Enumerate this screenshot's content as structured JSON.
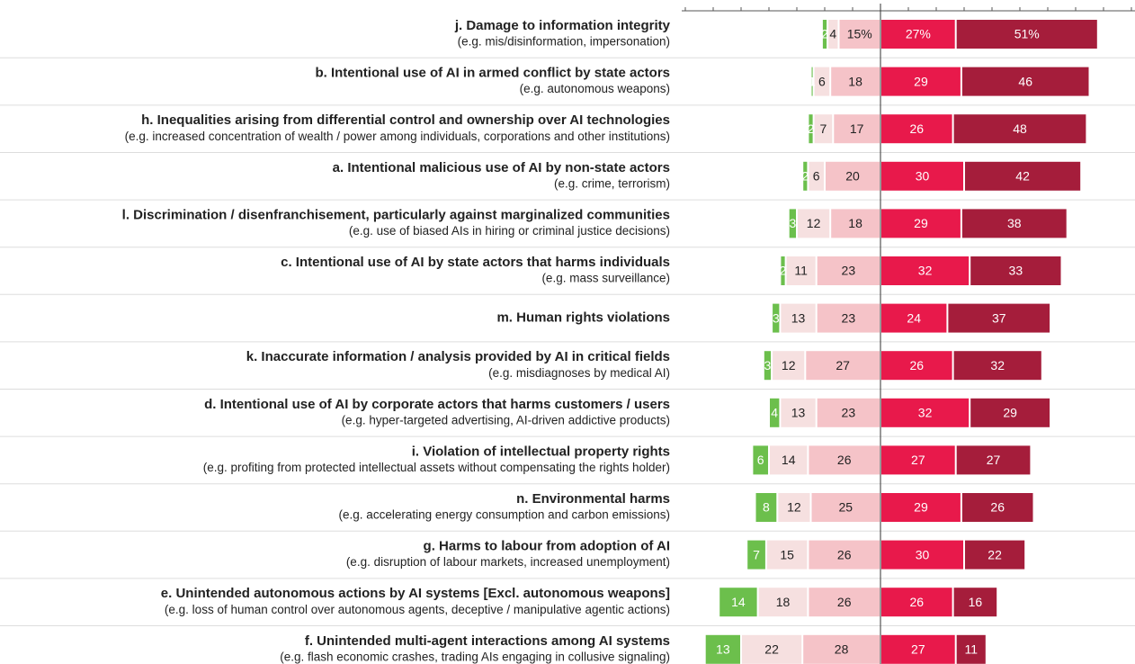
{
  "chart_data": {
    "type": "diverging-bar",
    "categories": [
      "j. Damage to information integrity",
      "b. Intentional use of AI in armed conflict by state actors",
      "h. Inequalities arising from differential control and ownership over AI technologies",
      "a. Intentional malicious use of AI by non-state actors",
      "l. Discrimination / disenfranchisement, particularly against marginalized communities",
      "c. Intentional use of AI by state actors that harms individuals",
      "m. Human rights violations",
      "k. Inaccurate information / analysis provided by AI in critical fields",
      "d. Intentional use of AI by corporate actors that harms customers / users",
      "i. Violation of intellectual property rights",
      "n. Environmental harms",
      "g. Harms to labour from adoption of AI",
      "e. Unintended autonomous actions by AI systems [Excl. autonomous weapons]",
      "f. Unintended multi-agent interactions among AI systems"
    ],
    "subtitles": [
      "(e.g. mis/disinformation, impersonation)",
      "(e.g. autonomous weapons)",
      "(e.g. increased concentration of wealth / power among individuals, corporations and other institutions)",
      "(e.g. crime, terrorism)",
      "(e.g. use of biased AIs in hiring or criminal justice decisions)",
      "(e.g. mass surveillance)",
      null,
      "(e.g. misdiagnoses by medical AI)",
      "(e.g. hyper-targeted advertising, AI-driven addictive products)",
      "(e.g. profiting from protected intellectual assets without compensating the rights holder)",
      "(e.g. accelerating energy consumption and carbon emissions)",
      "(e.g. disruption of labour markets, increased unemployment)",
      "(e.g. loss of human control over autonomous agents, deceptive / manipulative agentic actions)",
      "(e.g. flash economic crashes, trading AIs engaging in collusive signaling)"
    ],
    "series": [
      {
        "color": "#6cbf4c",
        "side": "left",
        "values": [
          2,
          1,
          2,
          2,
          3,
          2,
          3,
          3,
          4,
          6,
          8,
          7,
          14,
          13
        ]
      },
      {
        "color": "#f6e0e0",
        "side": "left",
        "values": [
          4,
          6,
          7,
          6,
          12,
          11,
          13,
          12,
          13,
          14,
          12,
          15,
          18,
          22
        ]
      },
      {
        "color": "#f5c3c8",
        "side": "left",
        "values": [
          15,
          18,
          17,
          20,
          18,
          23,
          23,
          27,
          23,
          26,
          25,
          26,
          26,
          28
        ],
        "value_labels": [
          "15%",
          "18",
          "17",
          "20",
          "18",
          "23",
          "23",
          "27",
          "23",
          "26",
          "25",
          "26",
          "26",
          "28"
        ]
      },
      {
        "color": "#e8194b",
        "side": "right",
        "values": [
          27,
          29,
          26,
          30,
          29,
          32,
          24,
          26,
          32,
          27,
          29,
          30,
          26,
          27
        ],
        "value_labels": [
          "27%",
          "29",
          "26",
          "30",
          "29",
          "32",
          "24",
          "26",
          "32",
          "27",
          "29",
          "30",
          "26",
          "27"
        ]
      },
      {
        "color": "#a51d3b",
        "side": "right",
        "values": [
          51,
          46,
          48,
          42,
          38,
          33,
          37,
          32,
          29,
          27,
          26,
          22,
          16,
          11
        ],
        "value_labels": [
          "51%",
          "46",
          "48",
          "42",
          "38",
          "33",
          "37",
          "32",
          "29",
          "27",
          "26",
          "22",
          "16",
          "11"
        ]
      }
    ],
    "xlim": [
      -70,
      90
    ],
    "xticks": [
      -70,
      -60,
      -50,
      -40,
      -30,
      -20,
      -10,
      0,
      10,
      20,
      30,
      40,
      50,
      60,
      70,
      80,
      90
    ]
  }
}
